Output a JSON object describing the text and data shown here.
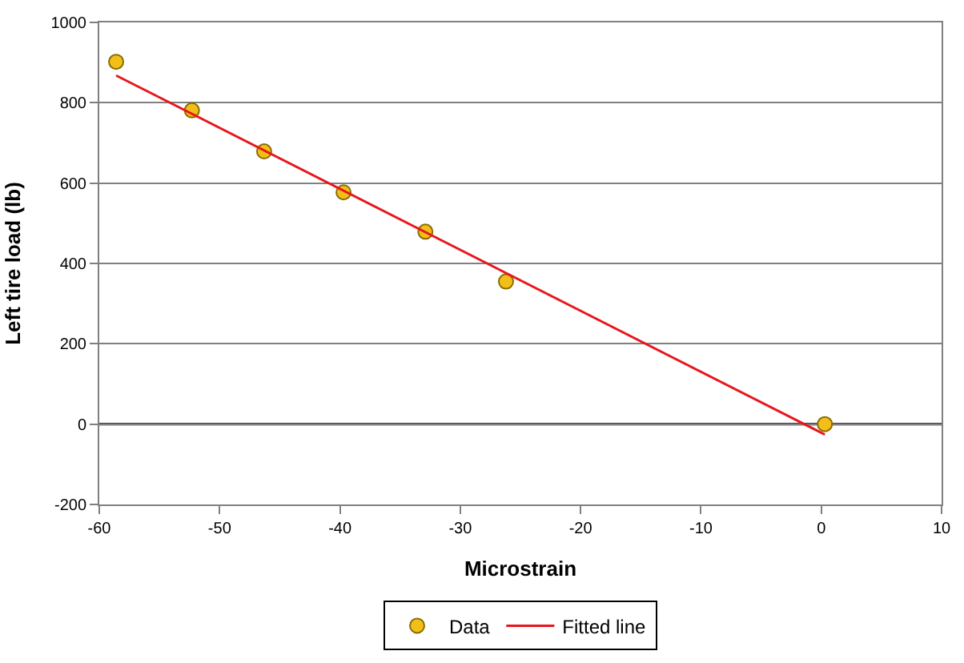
{
  "chart_data": {
    "type": "scatter",
    "xlabel": "Microstrain",
    "ylabel": "Left tire load (lb)",
    "xlim": [
      -60,
      10
    ],
    "xticks": [
      -60,
      -50,
      -40,
      -30,
      -20,
      -10,
      0,
      10
    ],
    "ylim": [
      -200,
      1000
    ],
    "yticks": [
      -200,
      0,
      200,
      400,
      600,
      800,
      1000
    ],
    "grid": "y",
    "legend": "bottom",
    "marker": "circle",
    "ref_lines": [
      {
        "axis": "y",
        "value": 0,
        "color": "#000000"
      }
    ],
    "series": [
      {
        "name": "Data",
        "color": "#f2be1a",
        "x": [
          -58.6,
          -52.3,
          -46.3,
          -39.7,
          -32.9,
          -26.2,
          0.3
        ],
        "values": [
          902,
          781,
          679,
          577,
          479,
          355,
          0
        ]
      },
      {
        "name": "Fitted line",
        "type": "line",
        "color": "#e8161c",
        "line_style": "solid",
        "marker": "none",
        "x": [
          -58.6,
          0.3
        ],
        "values": [
          868,
          -26
        ]
      }
    ]
  }
}
